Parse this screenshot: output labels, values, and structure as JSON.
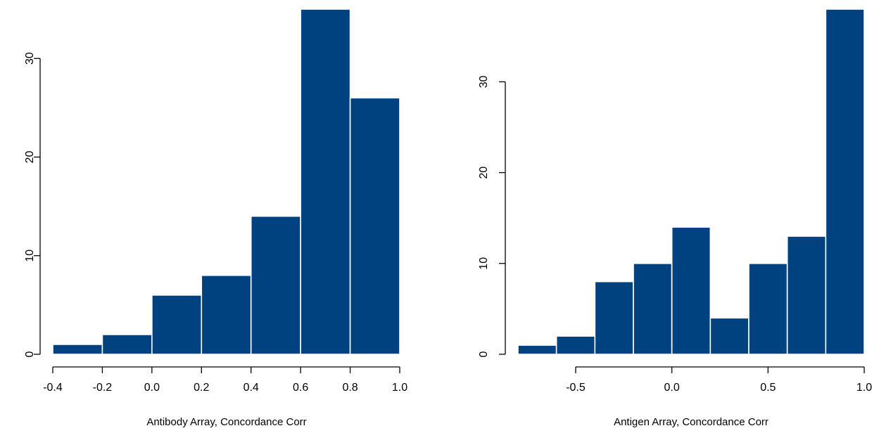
{
  "chart_data": [
    {
      "type": "bar",
      "subtype": "histogram",
      "xlabel": "Antibody Array, Concordance Corr",
      "ylabel": "",
      "bin_edges": [
        -0.4,
        -0.2,
        0.0,
        0.2,
        0.4,
        0.6,
        0.8,
        1.0
      ],
      "values": [
        1,
        2,
        6,
        8,
        14,
        35,
        26
      ],
      "xlim": [
        -0.4,
        1.0
      ],
      "ylim": [
        0,
        35
      ],
      "x_ticks": [
        -0.4,
        -0.2,
        0.0,
        0.2,
        0.4,
        0.6,
        0.8,
        1.0
      ],
      "x_tick_labels": [
        "-0.4",
        "-0.2",
        "0.0",
        "0.2",
        "0.4",
        "0.6",
        "0.8",
        "1.0"
      ],
      "y_ticks": [
        0,
        10,
        20,
        30
      ],
      "y_tick_labels": [
        "0",
        "10",
        "20",
        "30"
      ],
      "bar_color": "#00427f",
      "grid": false
    },
    {
      "type": "bar",
      "subtype": "histogram",
      "xlabel": "Antigen Array, Concordance Corr",
      "ylabel": "",
      "bin_edges": [
        -0.8,
        -0.6,
        -0.4,
        -0.2,
        0.0,
        0.2,
        0.4,
        0.6,
        0.8,
        1.0
      ],
      "values": [
        1,
        2,
        8,
        10,
        14,
        4,
        10,
        13,
        38
      ],
      "xlim": [
        -0.8,
        1.0
      ],
      "ylim": [
        0,
        38
      ],
      "x_ticks": [
        -0.5,
        0.0,
        0.5,
        1.0
      ],
      "x_tick_labels": [
        "-0.5",
        "0.0",
        "0.5",
        "1.0"
      ],
      "y_ticks": [
        0,
        10,
        20,
        30
      ],
      "y_tick_labels": [
        "0",
        "10",
        "20",
        "30"
      ],
      "bar_color": "#00427f",
      "grid": false
    }
  ]
}
